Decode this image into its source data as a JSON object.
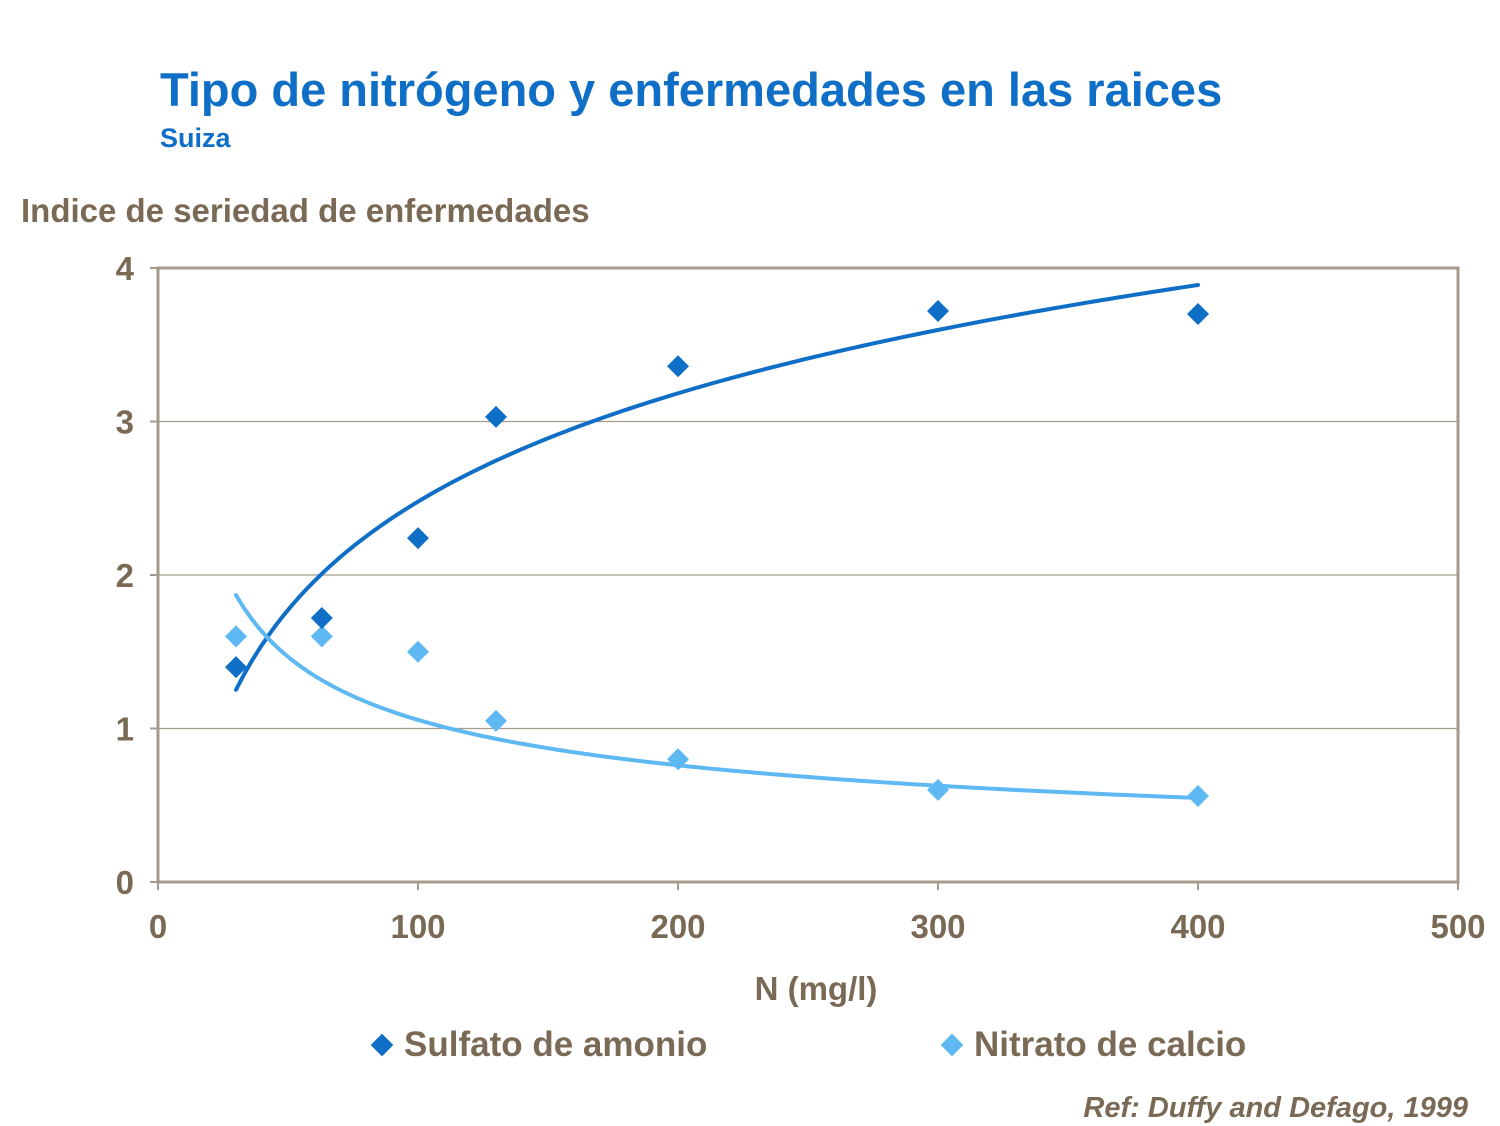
{
  "header": {
    "title": "Tipo de nitrógeno y enfermedades en las raices",
    "subtitle": "Suiza"
  },
  "reference": "Ref: Duffy and Defago, 1999",
  "chart_data": {
    "type": "scatter",
    "title": "Tipo de nitrógeno y enfermedades en las raices",
    "subtitle": "Suiza",
    "xlabel": "N (mg/l)",
    "ylabel": "Indice de seriedad de enfermedades",
    "xlim": [
      0,
      500
    ],
    "ylim": [
      0,
      4
    ],
    "xticks": [
      0,
      100,
      200,
      300,
      400,
      500
    ],
    "yticks": [
      0,
      1,
      2,
      3,
      4
    ],
    "grid": true,
    "legend_position": "bottom",
    "series": [
      {
        "name": "Sulfato de amonio",
        "color": "#0f6fc6",
        "marker": "diamond",
        "points": [
          [
            30,
            1.4
          ],
          [
            63,
            1.72
          ],
          [
            100,
            2.24
          ],
          [
            130,
            3.03
          ],
          [
            200,
            3.36
          ],
          [
            300,
            3.72
          ],
          [
            400,
            3.7
          ]
        ],
        "trendline": {
          "type": "logarithmic",
          "x_range": [
            30,
            400
          ],
          "a": 1.018,
          "b": -2.21
        }
      },
      {
        "name": "Nitrato de calcio",
        "color": "#5eb8f2",
        "marker": "diamond",
        "points": [
          [
            30,
            1.6
          ],
          [
            63,
            1.6
          ],
          [
            100,
            1.5
          ],
          [
            130,
            1.05
          ],
          [
            200,
            0.8
          ],
          [
            300,
            0.6
          ],
          [
            400,
            0.56
          ]
        ],
        "trendline": {
          "type": "power",
          "x_range": [
            30,
            400
          ],
          "a": 9.37,
          "b": -0.474
        }
      }
    ]
  }
}
